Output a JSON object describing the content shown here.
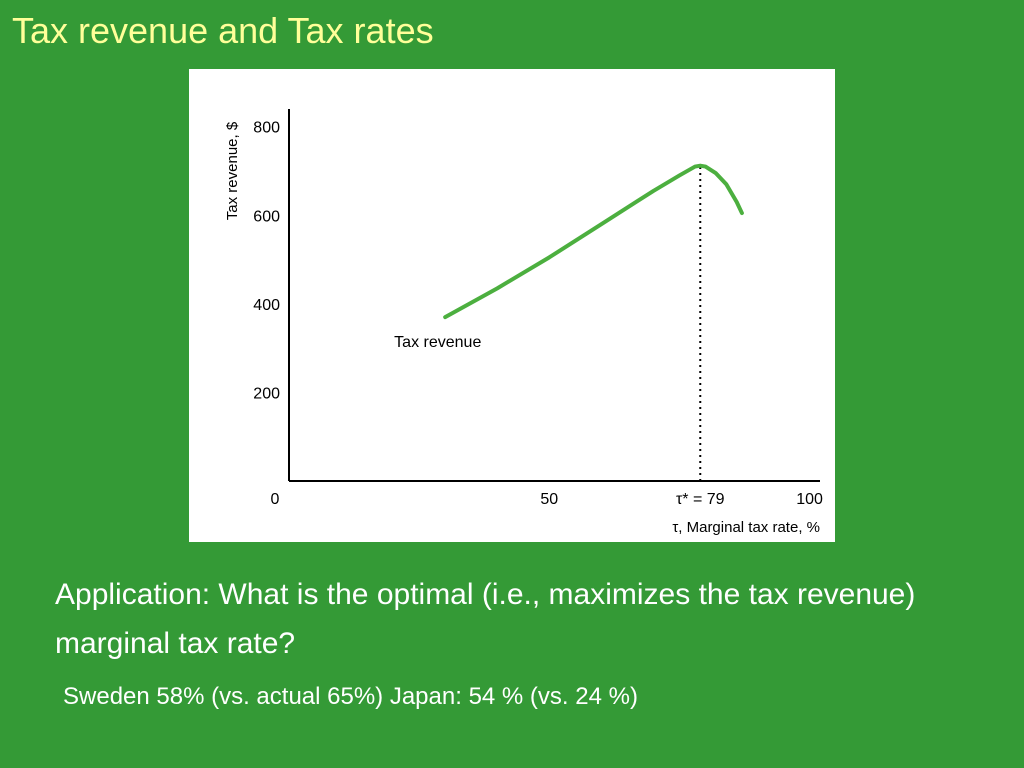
{
  "slide": {
    "title": "Tax revenue and Tax rates",
    "question": "Application: What is the optimal (i.e., maximizes the tax revenue) marginal tax rate?",
    "note": "Sweden 58% (vs. actual 65%) Japan: 54 % (vs. 24 %)"
  },
  "colors": {
    "background": "#349a36",
    "title": "#ffff99",
    "curve": "#4caf3f"
  },
  "chart_data": {
    "type": "line",
    "title": "",
    "xlabel": "τ, Marginal tax rate, %",
    "ylabel": "Tax revenue, $",
    "xlim": [
      0,
      102
    ],
    "ylim": [
      0,
      840
    ],
    "x_ticks": [
      "0",
      "50",
      "τ* = 79",
      "100"
    ],
    "x_tick_values": [
      0,
      50,
      79,
      100
    ],
    "y_ticks": [
      "200",
      "400",
      "600",
      "800"
    ],
    "y_tick_values": [
      200,
      400,
      600,
      800
    ],
    "series": [
      {
        "label": "Tax revenue",
        "x": [
          30,
          40,
          50,
          60,
          70,
          75,
          78,
          79,
          80,
          82,
          84,
          86,
          87
        ],
        "y": [
          370,
          435,
          505,
          580,
          655,
          690,
          710,
          712,
          710,
          695,
          670,
          630,
          605
        ]
      }
    ],
    "marker": {
      "x": 79,
      "label": "τ* = 79"
    },
    "grid": false
  }
}
